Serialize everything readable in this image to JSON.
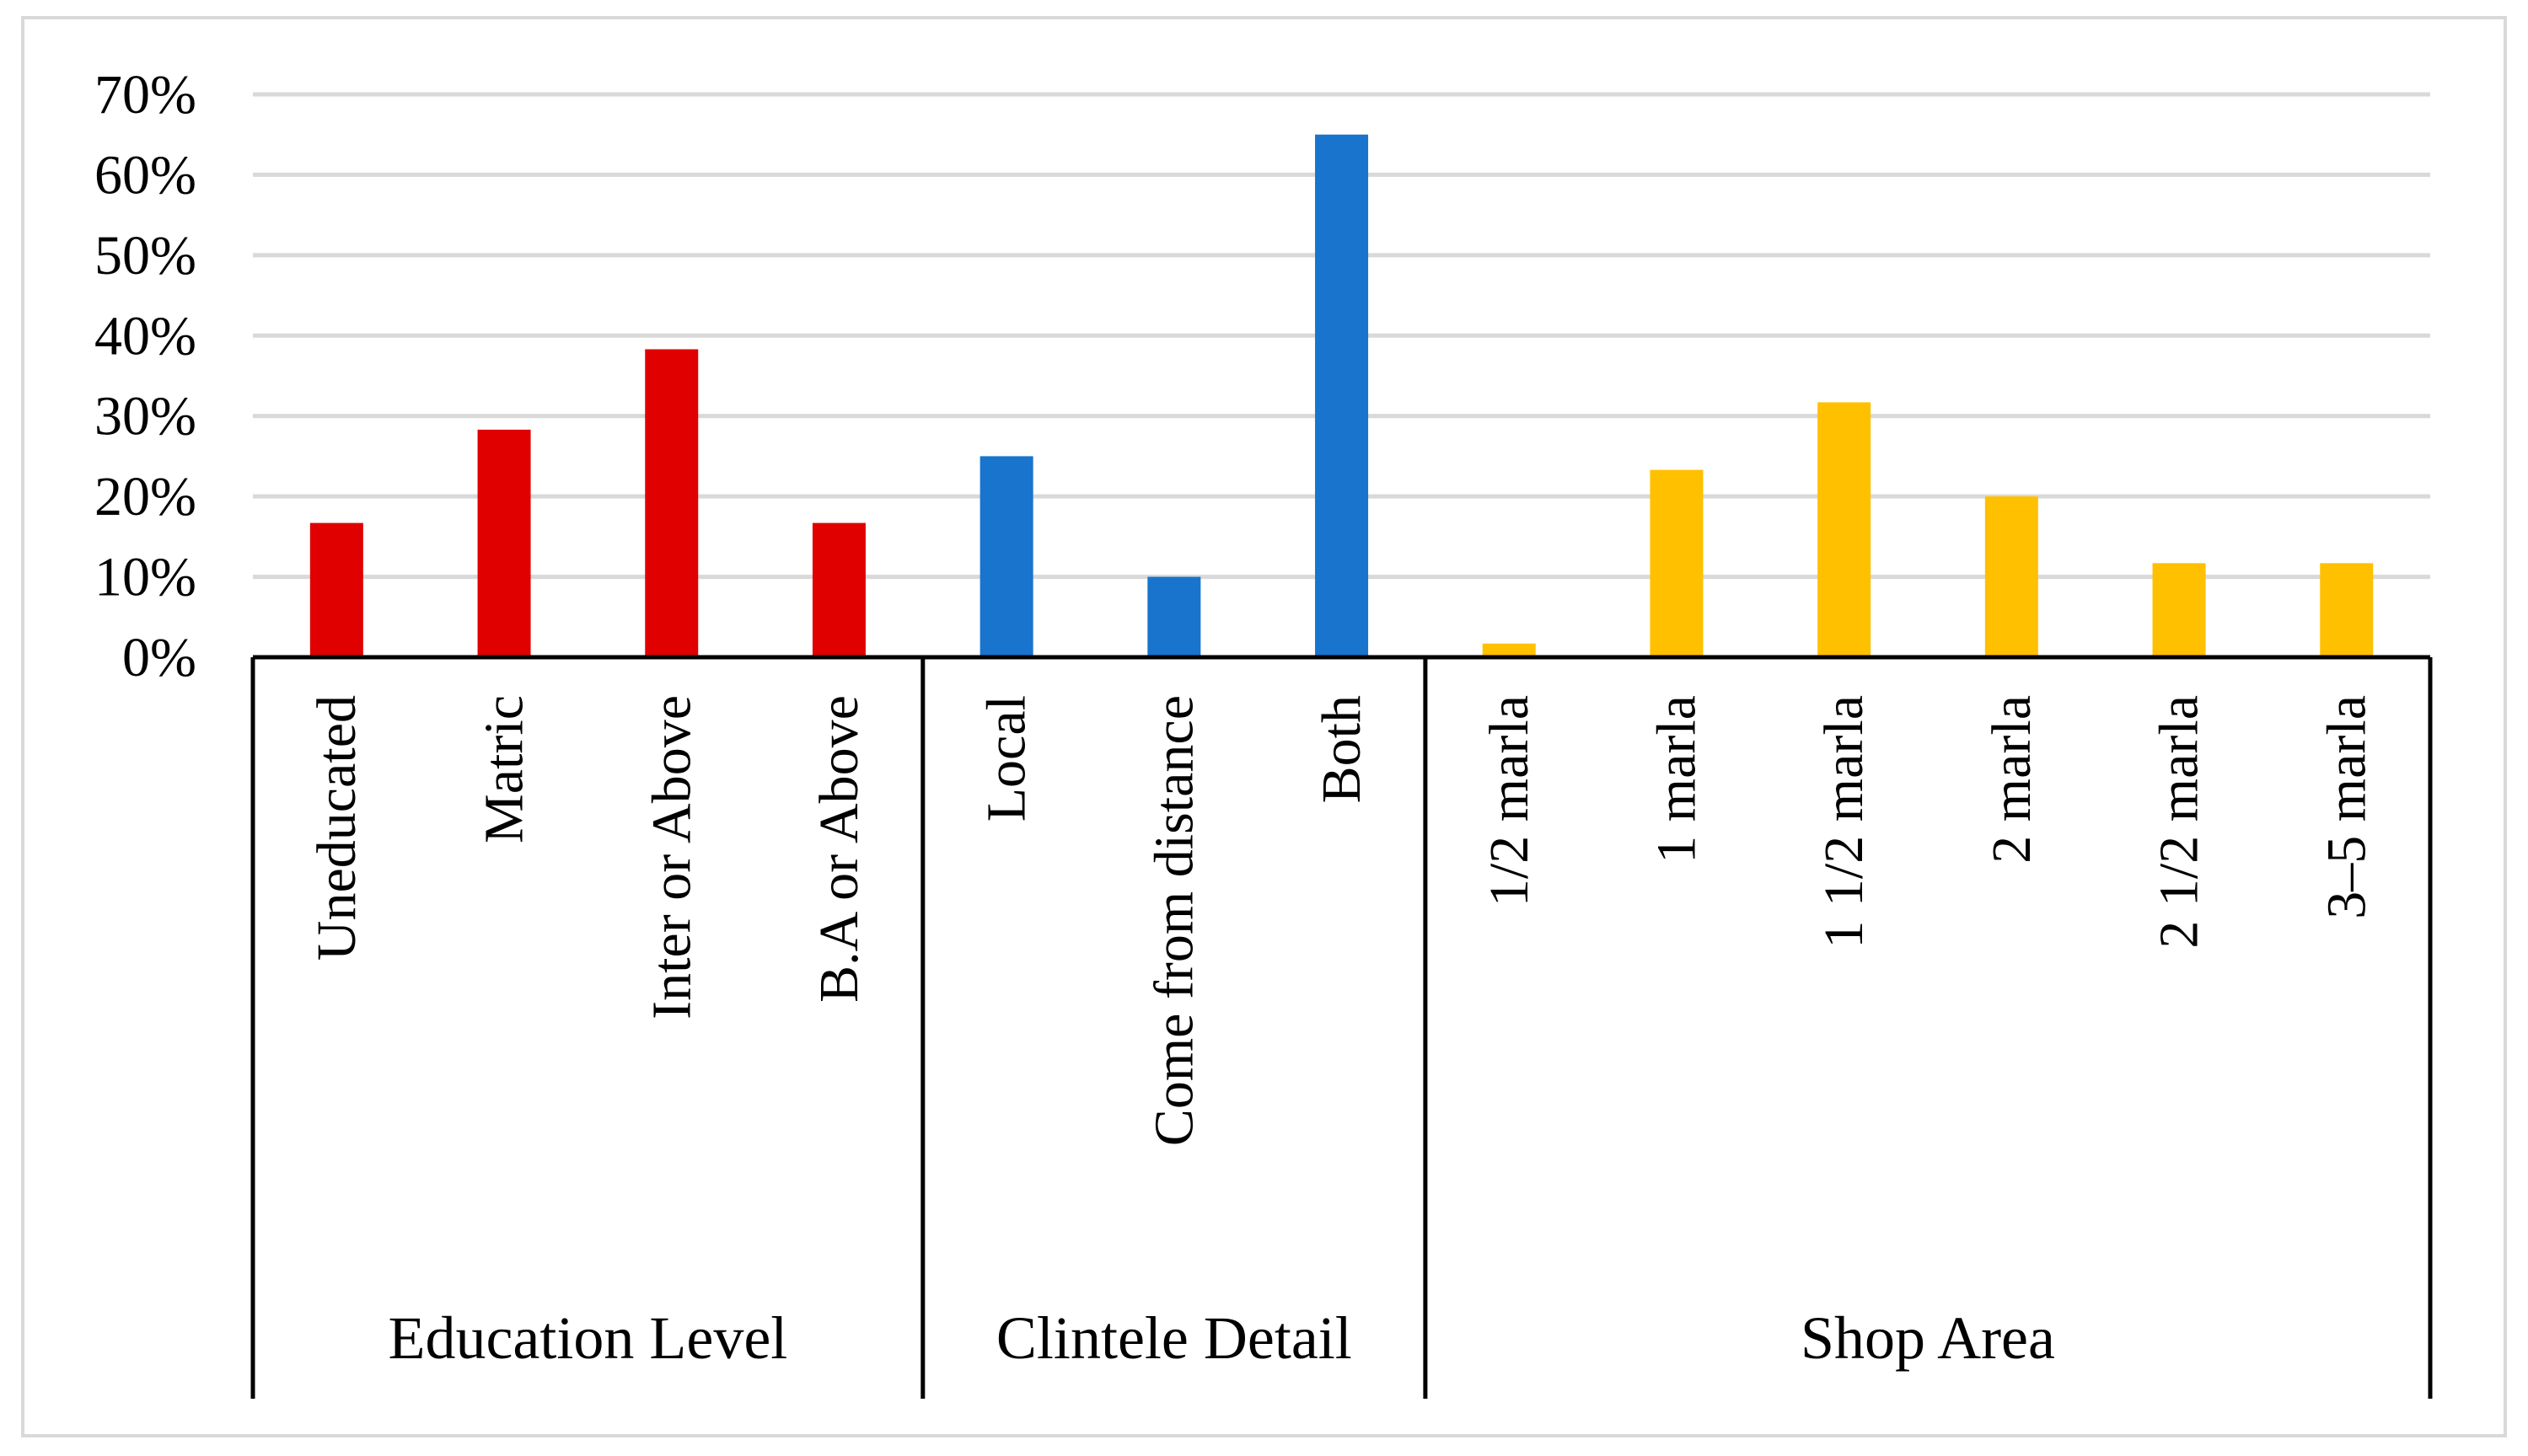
{
  "chart_data": {
    "type": "bar",
    "title": "",
    "xlabel": "",
    "ylabel": "",
    "ylim": [
      0,
      0.7
    ],
    "y_ticks": [
      {
        "value": 0.0,
        "label": "0%"
      },
      {
        "value": 0.1,
        "label": "10%"
      },
      {
        "value": 0.2,
        "label": "20%"
      },
      {
        "value": 0.3,
        "label": "30%"
      },
      {
        "value": 0.4,
        "label": "40%"
      },
      {
        "value": 0.5,
        "label": "50%"
      },
      {
        "value": 0.6,
        "label": "60%"
      },
      {
        "value": 0.7,
        "label": "70%"
      }
    ],
    "grid": true,
    "groups": [
      {
        "label": "Education Level",
        "color": "#E00000",
        "categories": [
          "Uneducated",
          "Matric",
          "Inter or Above",
          "B.A or Above"
        ],
        "values": [
          0.167,
          0.283,
          0.383,
          0.167
        ]
      },
      {
        "label": "Clintele Detail",
        "color": "#1874CD",
        "categories": [
          "Local",
          "Come from distance",
          "Both"
        ],
        "values": [
          0.25,
          0.1,
          0.65
        ]
      },
      {
        "label": "Shop Area",
        "color": "#FFC000",
        "categories": [
          "1/2 marla",
          "1 marla",
          "1 1/2 marla",
          "2 marla",
          "2 1/2 marla",
          "3–5 marla"
        ],
        "values": [
          0.017,
          0.233,
          0.317,
          0.2,
          0.117,
          0.117
        ]
      }
    ]
  }
}
